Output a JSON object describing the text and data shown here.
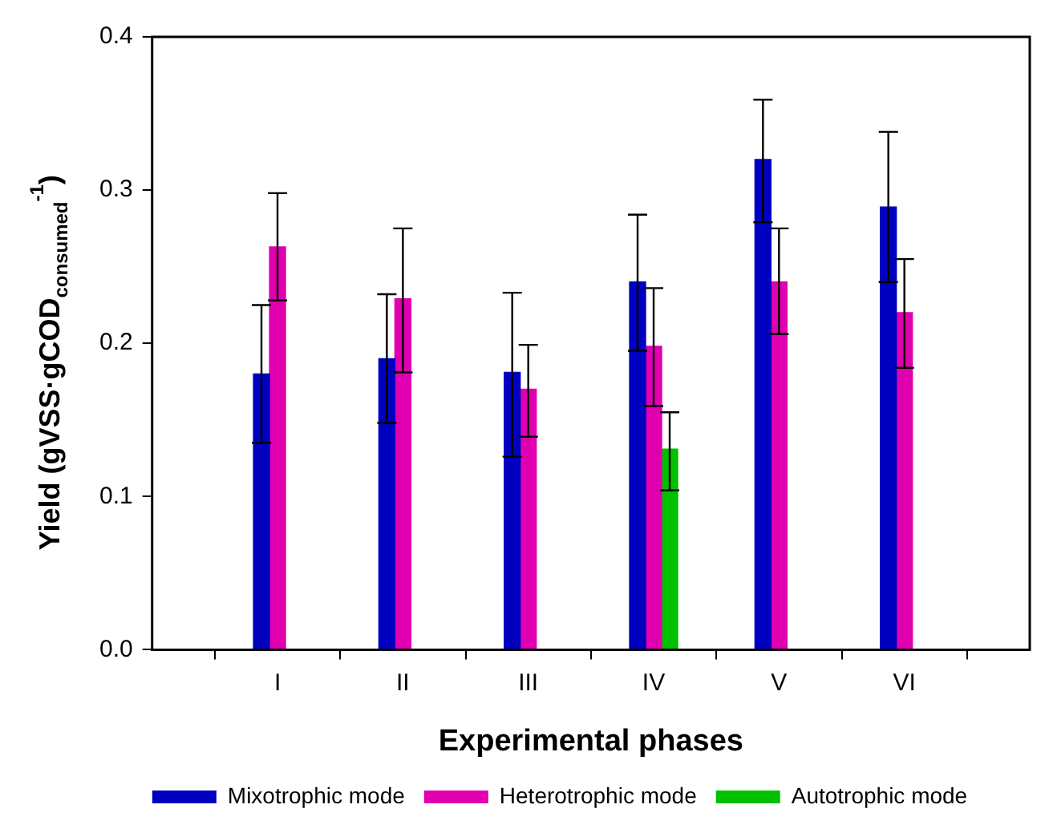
{
  "chart_data": {
    "type": "bar",
    "xlabel": "Experimental phases",
    "ylabel": "Yield (gVSS·gCOD$_{consumed}$$^{-1}$)",
    "categories": [
      "I",
      "II",
      "III",
      "IV",
      "V",
      "VI"
    ],
    "series": [
      {
        "name": "Mixotrophic mode",
        "color": "#0000c0",
        "values": [
          0.18,
          0.19,
          0.181,
          0.24,
          0.32,
          0.289
        ],
        "errors": [
          [
            0.135,
            0.225
          ],
          [
            0.148,
            0.232
          ],
          [
            0.126,
            0.233
          ],
          [
            0.195,
            0.284
          ],
          [
            0.279,
            0.359
          ],
          [
            0.24,
            0.338
          ]
        ]
      },
      {
        "name": "Heterotrophic mode",
        "color": "#e000b0",
        "values": [
          0.263,
          0.229,
          0.17,
          0.198,
          0.24,
          0.22
        ],
        "errors": [
          [
            0.228,
            0.298
          ],
          [
            0.181,
            0.275
          ],
          [
            0.139,
            0.199
          ],
          [
            0.159,
            0.236
          ],
          [
            0.206,
            0.275
          ],
          [
            0.184,
            0.255
          ]
        ]
      },
      {
        "name": "Autotrophic mode",
        "color": "#00c000",
        "values": [
          null,
          null,
          null,
          0.131,
          null,
          null
        ],
        "errors": [
          null,
          null,
          null,
          [
            0.104,
            0.155
          ],
          null,
          null
        ]
      }
    ],
    "ylim": [
      0,
      0.4
    ],
    "yticks": [
      {
        "value": 0,
        "label": "0.0"
      },
      0.1,
      0.2,
      0.3,
      0.4
    ],
    "grid": false,
    "legend": "bottom"
  }
}
